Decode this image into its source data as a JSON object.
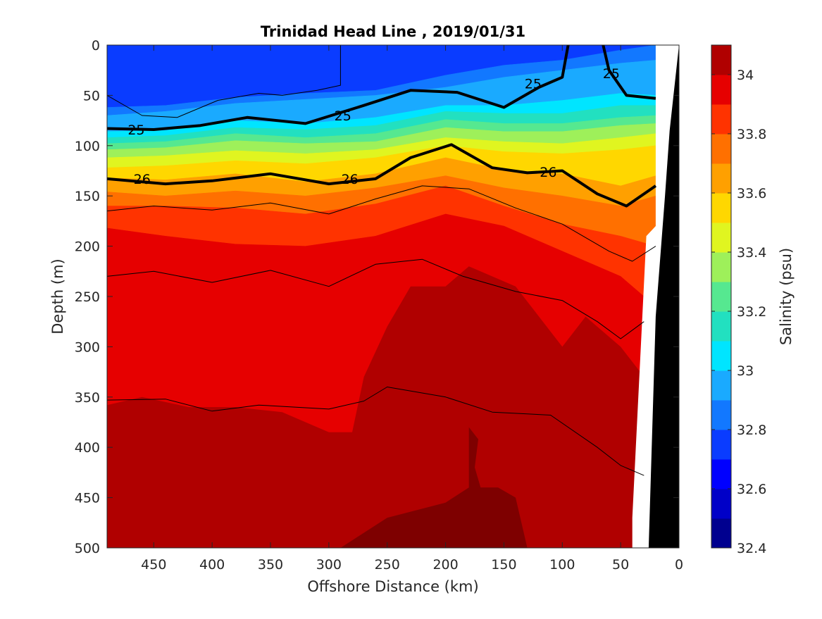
{
  "chart_data": {
    "type": "heatmap",
    "title": "Trinidad Head Line , 2019/01/31",
    "xlabel": "Offshore Distance (km)",
    "ylabel": "Depth (m)",
    "colorbar_label": "Salinity (psu)",
    "xlim": [
      490,
      0
    ],
    "ylim": [
      500,
      0
    ],
    "x_ticks": [
      450,
      400,
      350,
      300,
      250,
      200,
      150,
      100,
      50,
      0
    ],
    "y_ticks": [
      0,
      50,
      100,
      150,
      200,
      250,
      300,
      350,
      400,
      450,
      500
    ],
    "colorbar_range": [
      32.4,
      34.1
    ],
    "colorbar_ticks": [
      34,
      33.8,
      33.6,
      33.4,
      33.2,
      33,
      32.8,
      32.6,
      32.4
    ],
    "levels": [
      {
        "min": 32.4,
        "max": 32.5,
        "color": "#00008f"
      },
      {
        "min": 32.5,
        "max": 32.6,
        "color": "#0000c8"
      },
      {
        "min": 32.6,
        "max": 32.7,
        "color": "#0000ff"
      },
      {
        "min": 32.7,
        "max": 32.8,
        "color": "#0a3cff"
      },
      {
        "min": 32.8,
        "max": 32.9,
        "color": "#1278ff"
      },
      {
        "min": 32.9,
        "max": 33.0,
        "color": "#1aaaff"
      },
      {
        "min": 33.0,
        "max": 33.1,
        "color": "#00e5ff"
      },
      {
        "min": 33.1,
        "max": 33.2,
        "color": "#22e0c0"
      },
      {
        "min": 33.2,
        "max": 33.3,
        "color": "#56e890"
      },
      {
        "min": 33.3,
        "max": 33.4,
        "color": "#9ef05a"
      },
      {
        "min": 33.4,
        "max": 33.5,
        "color": "#e0f520"
      },
      {
        "min": 33.5,
        "max": 33.6,
        "color": "#ffd700"
      },
      {
        "min": 33.6,
        "max": 33.7,
        "color": "#ffa000"
      },
      {
        "min": 33.7,
        "max": 33.8,
        "color": "#ff7000"
      },
      {
        "min": 33.8,
        "max": 33.9,
        "color": "#ff3300"
      },
      {
        "min": 33.9,
        "max": 34.0,
        "color": "#e60000"
      },
      {
        "min": 34.0,
        "max": 34.1,
        "color": "#b00000"
      }
    ],
    "bands": [
      {
        "color": "#0a3cff",
        "top_depths": [
          0,
          0,
          0,
          0,
          0,
          0,
          0,
          0,
          0,
          0
        ]
      },
      {
        "color": "#1278ff",
        "top_depths": [
          62,
          60,
          52,
          48,
          45,
          30,
          20,
          15,
          5,
          0
        ]
      },
      {
        "color": "#1aaaff",
        "top_depths": [
          70,
          66,
          58,
          54,
          50,
          42,
          32,
          25,
          18,
          15
        ]
      },
      {
        "color": "#00e5ff",
        "top_depths": [
          86,
          85,
          75,
          78,
          72,
          60,
          60,
          55,
          48,
          50
        ]
      },
      {
        "color": "#22e0c0",
        "top_depths": [
          92,
          90,
          82,
          84,
          80,
          66,
          68,
          68,
          60,
          60
        ]
      },
      {
        "color": "#56e890",
        "top_depths": [
          98,
          96,
          88,
          92,
          88,
          74,
          78,
          78,
          72,
          70
        ]
      },
      {
        "color": "#9ef05a",
        "top_depths": [
          104,
          102,
          95,
          98,
          96,
          82,
          86,
          86,
          80,
          78
        ]
      },
      {
        "color": "#e0f520",
        "top_depths": [
          112,
          110,
          105,
          108,
          104,
          92,
          96,
          98,
          92,
          88
        ]
      },
      {
        "color": "#ffd700",
        "top_depths": [
          122,
          120,
          115,
          118,
          112,
          100,
          106,
          108,
          104,
          100
        ]
      },
      {
        "color": "#ffa000",
        "top_depths": [
          132,
          134,
          128,
          136,
          128,
          112,
          124,
          128,
          140,
          130
        ]
      },
      {
        "color": "#ff7000",
        "top_depths": [
          146,
          150,
          145,
          150,
          142,
          130,
          142,
          150,
          160,
          150
        ]
      },
      {
        "color": "#ff3300",
        "top_depths": [
          160,
          160,
          162,
          168,
          158,
          140,
          160,
          178,
          190,
          200
        ]
      },
      {
        "color": "#e60000",
        "top_depths": [
          182,
          190,
          198,
          200,
          190,
          168,
          180,
          205,
          230,
          260
        ]
      }
    ],
    "band_x": [
      490,
      440,
      380,
      320,
      260,
      200,
      150,
      100,
      50,
      20
    ],
    "deep_regions": [
      {
        "color": "#b00000",
        "points": [
          [
            490,
            358
          ],
          [
            460,
            350
          ],
          [
            420,
            360
          ],
          [
            380,
            360
          ],
          [
            340,
            365
          ],
          [
            300,
            385
          ],
          [
            280,
            385
          ],
          [
            270,
            330
          ],
          [
            250,
            280
          ],
          [
            230,
            240
          ],
          [
            200,
            240
          ],
          [
            180,
            220
          ],
          [
            140,
            240
          ],
          [
            100,
            300
          ],
          [
            80,
            270
          ],
          [
            50,
            300
          ],
          [
            30,
            330
          ],
          [
            30,
            500
          ],
          [
            490,
            500
          ]
        ]
      },
      {
        "color": "#7e0000",
        "points": [
          [
            180,
            380
          ],
          [
            172,
            392
          ],
          [
            175,
            420
          ],
          [
            170,
            440
          ],
          [
            155,
            440
          ],
          [
            140,
            450
          ],
          [
            130,
            500
          ],
          [
            310,
            500
          ],
          [
            290,
            500
          ],
          [
            250,
            470
          ],
          [
            200,
            455
          ],
          [
            180,
            440
          ]
        ]
      }
    ],
    "blank_region": {
      "color": "#ffffff",
      "points": [
        [
          40,
          500
        ],
        [
          40,
          470
        ],
        [
          28,
          190
        ],
        [
          20,
          180
        ],
        [
          20,
          0
        ],
        [
          0,
          0
        ],
        [
          0,
          500
        ]
      ]
    },
    "bottom": {
      "color": "#000000",
      "points": [
        [
          0,
          0
        ],
        [
          8,
          85
        ],
        [
          12,
          150
        ],
        [
          20,
          270
        ],
        [
          26,
          500
        ],
        [
          0,
          500
        ]
      ]
    },
    "isopycnals": [
      {
        "label": "25",
        "bold": true,
        "points": [
          [
            490,
            83
          ],
          [
            450,
            84
          ],
          [
            410,
            80
          ],
          [
            370,
            72
          ],
          [
            320,
            78
          ],
          [
            270,
            60
          ],
          [
            230,
            45
          ],
          [
            190,
            47
          ],
          [
            150,
            62
          ],
          [
            120,
            42
          ],
          [
            100,
            32
          ],
          [
            95,
            0
          ]
        ],
        "label_positions": [
          [
            465,
            84
          ],
          [
            288,
            70
          ],
          [
            125,
            38
          ]
        ]
      },
      {
        "label": "25",
        "bold": true,
        "points": [
          [
            65,
            0
          ],
          [
            60,
            25
          ],
          [
            45,
            50
          ],
          [
            20,
            53
          ]
        ],
        "label_positions": [
          [
            58,
            28
          ]
        ]
      },
      {
        "label": "26",
        "bold": true,
        "points": [
          [
            490,
            133
          ],
          [
            440,
            138
          ],
          [
            400,
            135
          ],
          [
            350,
            128
          ],
          [
            300,
            138
          ],
          [
            260,
            133
          ],
          [
            230,
            112
          ],
          [
            195,
            99
          ],
          [
            160,
            122
          ],
          [
            130,
            127
          ],
          [
            100,
            125
          ],
          [
            70,
            148
          ],
          [
            45,
            160
          ],
          [
            20,
            140
          ]
        ],
        "label_positions": [
          [
            460,
            133
          ],
          [
            282,
            133
          ],
          [
            112,
            126
          ]
        ]
      },
      {
        "label": "",
        "bold": false,
        "points": [
          [
            490,
            165
          ],
          [
            450,
            160
          ],
          [
            400,
            164
          ],
          [
            350,
            157
          ],
          [
            300,
            168
          ],
          [
            260,
            153
          ],
          [
            220,
            140
          ],
          [
            180,
            143
          ],
          [
            140,
            162
          ],
          [
            100,
            178
          ],
          [
            60,
            205
          ],
          [
            40,
            215
          ],
          [
            20,
            200
          ]
        ],
        "label_positions": []
      },
      {
        "label": "",
        "bold": false,
        "points": [
          [
            490,
            230
          ],
          [
            450,
            225
          ],
          [
            400,
            236
          ],
          [
            350,
            224
          ],
          [
            300,
            240
          ],
          [
            260,
            218
          ],
          [
            220,
            213
          ],
          [
            185,
            230
          ],
          [
            140,
            245
          ],
          [
            100,
            254
          ],
          [
            70,
            275
          ],
          [
            50,
            292
          ],
          [
            30,
            275
          ]
        ],
        "label_positions": []
      },
      {
        "label": "",
        "bold": false,
        "points": [
          [
            490,
            353
          ],
          [
            440,
            352
          ],
          [
            400,
            364
          ],
          [
            360,
            358
          ],
          [
            300,
            362
          ],
          [
            270,
            354
          ],
          [
            250,
            340
          ],
          [
            200,
            350
          ],
          [
            160,
            365
          ],
          [
            110,
            368
          ],
          [
            70,
            400
          ],
          [
            50,
            418
          ],
          [
            30,
            428
          ]
        ],
        "label_positions": []
      },
      {
        "label": "",
        "bold": false,
        "points": [
          [
            490,
            50
          ],
          [
            460,
            70
          ],
          [
            430,
            72
          ],
          [
            395,
            55
          ],
          [
            360,
            48
          ],
          [
            340,
            50
          ],
          [
            310,
            45
          ],
          [
            290,
            40
          ],
          [
            290,
            0
          ]
        ],
        "label_positions": []
      }
    ]
  }
}
